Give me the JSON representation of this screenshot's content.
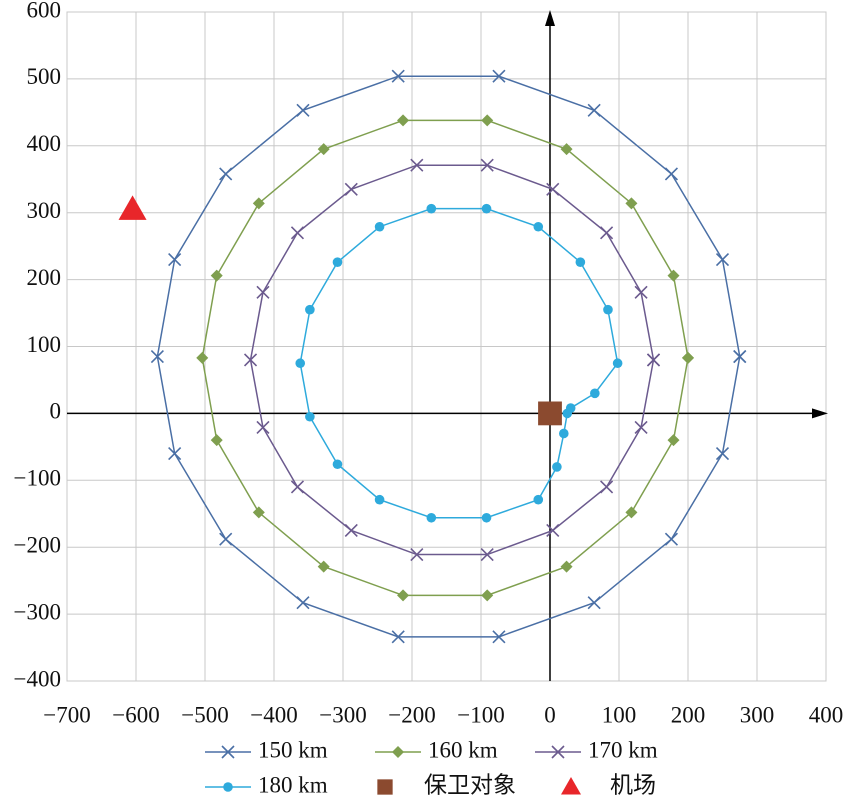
{
  "chart_data": {
    "type": "scatter",
    "xlim": [
      -700,
      400
    ],
    "ylim": [
      -400,
      600
    ],
    "xticks": [
      {
        "value": -700,
        "label": "−700"
      },
      {
        "value": -600,
        "label": "−600"
      },
      {
        "value": -500,
        "label": "−500"
      },
      {
        "value": -400,
        "label": "−400"
      },
      {
        "value": -300,
        "label": "−300"
      },
      {
        "value": -200,
        "label": "−200"
      },
      {
        "value": -100,
        "label": "−100"
      },
      0,
      100,
      200,
      300,
      400
    ],
    "yticks": [
      {
        "value": -400,
        "label": "−400"
      },
      {
        "value": -300,
        "label": "−300"
      },
      {
        "value": -200,
        "label": "−200"
      },
      {
        "value": -100,
        "label": "−100"
      },
      0,
      100,
      200,
      300,
      400,
      500,
      600
    ],
    "grid": true,
    "series": [
      {
        "name": "150 km",
        "color": "#4a6fa5",
        "marker": "x",
        "line": true,
        "x": [
          275,
          250,
          176,
          64,
          -74,
          -220,
          -358,
          -470,
          -544,
          -569,
          -544,
          -470,
          -358,
          -220,
          -74,
          64,
          176,
          250,
          275
        ],
        "values": [
          85,
          230,
          358,
          453,
          504,
          504,
          453,
          358,
          230,
          85,
          -60,
          -188,
          -283,
          -334,
          -334,
          -283,
          -188,
          -60,
          85
        ]
      },
      {
        "name": "160 km",
        "color": "#7f9f4f",
        "marker": "diamond",
        "line": true,
        "x": [
          200,
          179,
          118,
          24,
          -91,
          -213,
          -328,
          -422,
          -483,
          -504,
          -483,
          -422,
          -328,
          -213,
          -91,
          24,
          118,
          179,
          200
        ],
        "values": [
          83,
          206,
          314,
          395,
          438,
          438,
          395,
          314,
          206,
          83,
          -40,
          -148,
          -229,
          -272,
          -272,
          -229,
          -148,
          -40,
          83
        ]
      },
      {
        "name": "170 km",
        "color": "#6b5a8e",
        "marker": "x",
        "line": true,
        "x": [
          150,
          132,
          82,
          4,
          -91,
          -193,
          -288,
          -366,
          -416,
          -434,
          -416,
          -366,
          -288,
          -193,
          -91,
          4,
          82,
          132,
          150
        ],
        "values": [
          80,
          181,
          270,
          335,
          371,
          371,
          335,
          270,
          181,
          80,
          -21,
          -110,
          -175,
          -211,
          -211,
          -175,
          -110,
          -21,
          80
        ]
      },
      {
        "name": "180 km",
        "color": "#2eaadc",
        "marker": "circle",
        "line": true,
        "x": [
          30,
          65,
          98,
          84,
          44,
          -17,
          -92,
          -172,
          -247,
          -308,
          -348,
          -362,
          -348,
          -308,
          -247,
          -172,
          -92,
          -17,
          10,
          20,
          25
        ],
        "values": [
          8,
          30,
          75,
          155,
          226,
          279,
          306,
          306,
          279,
          226,
          155,
          75,
          -5,
          -76,
          -129,
          -156,
          -156,
          -129,
          -80,
          -30,
          0
        ]
      },
      {
        "name": "保卫对象",
        "color": "#8b4a2f",
        "marker": "square",
        "line": false,
        "x": [
          0
        ],
        "values": [
          0
        ]
      },
      {
        "name": "机场",
        "color": "#e8262a",
        "marker": "triangle",
        "line": false,
        "x": [
          -605
        ],
        "values": [
          305
        ]
      }
    ]
  }
}
